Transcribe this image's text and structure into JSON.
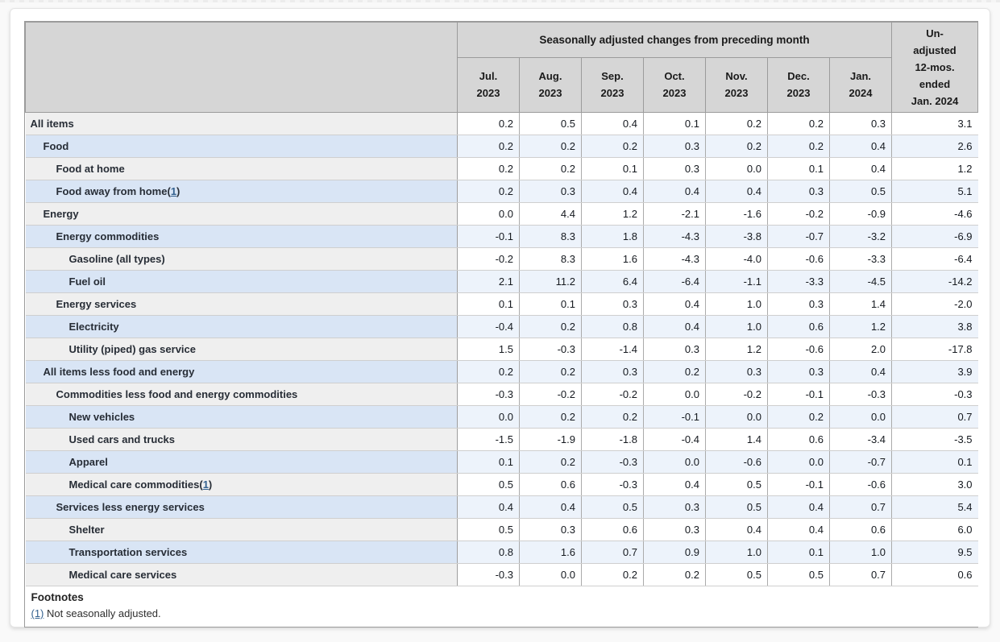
{
  "page": {
    "footnotes_heading": "Footnotes"
  },
  "colors": {
    "header_bg": "#d6d6d6",
    "row_gray_label_bg": "#efefef",
    "row_gray_data_bg": "#ffffff",
    "row_blue_label_bg": "#d9e5f5",
    "row_blue_data_bg": "#edf3fb",
    "table_border": "#9b9b9b",
    "footnote_link_blue": "#33618f"
  },
  "chart_data": {
    "type": "table",
    "title": "Seasonally adjusted changes from preceding month",
    "column_group_label": "Seasonally adjusted changes from preceding month",
    "month_columns": [
      [
        "Jul.",
        "2023"
      ],
      [
        "Aug.",
        "2023"
      ],
      [
        "Sep.",
        "2023"
      ],
      [
        "Oct.",
        "2023"
      ],
      [
        "Nov.",
        "2023"
      ],
      [
        "Dec.",
        "2023"
      ],
      [
        "Jan.",
        "2024"
      ]
    ],
    "unadjusted_column_label_lines": [
      "Un-",
      "adjusted",
      "12-mos.",
      "ended",
      "Jan. 2024"
    ],
    "rows": [
      {
        "label": "All items",
        "indent": 0,
        "footnote": false,
        "values": [
          "0.2",
          "0.5",
          "0.4",
          "0.1",
          "0.2",
          "0.2",
          "0.3",
          "3.1"
        ]
      },
      {
        "label": "Food",
        "indent": 1,
        "footnote": false,
        "values": [
          "0.2",
          "0.2",
          "0.2",
          "0.3",
          "0.2",
          "0.2",
          "0.4",
          "2.6"
        ]
      },
      {
        "label": "Food at home",
        "indent": 2,
        "footnote": false,
        "values": [
          "0.2",
          "0.2",
          "0.1",
          "0.3",
          "0.0",
          "0.1",
          "0.4",
          "1.2"
        ]
      },
      {
        "label": "Food away from home",
        "indent": 2,
        "footnote": true,
        "values": [
          "0.2",
          "0.3",
          "0.4",
          "0.4",
          "0.4",
          "0.3",
          "0.5",
          "5.1"
        ]
      },
      {
        "label": "Energy",
        "indent": 1,
        "footnote": false,
        "values": [
          "0.0",
          "4.4",
          "1.2",
          "-2.1",
          "-1.6",
          "-0.2",
          "-0.9",
          "-4.6"
        ]
      },
      {
        "label": "Energy commodities",
        "indent": 2,
        "footnote": false,
        "values": [
          "-0.1",
          "8.3",
          "1.8",
          "-4.3",
          "-3.8",
          "-0.7",
          "-3.2",
          "-6.9"
        ]
      },
      {
        "label": "Gasoline (all types)",
        "indent": 3,
        "footnote": false,
        "values": [
          "-0.2",
          "8.3",
          "1.6",
          "-4.3",
          "-4.0",
          "-0.6",
          "-3.3",
          "-6.4"
        ]
      },
      {
        "label": "Fuel oil",
        "indent": 3,
        "footnote": false,
        "values": [
          "2.1",
          "11.2",
          "6.4",
          "-6.4",
          "-1.1",
          "-3.3",
          "-4.5",
          "-14.2"
        ]
      },
      {
        "label": "Energy services",
        "indent": 2,
        "footnote": false,
        "values": [
          "0.1",
          "0.1",
          "0.3",
          "0.4",
          "1.0",
          "0.3",
          "1.4",
          "-2.0"
        ]
      },
      {
        "label": "Electricity",
        "indent": 3,
        "footnote": false,
        "values": [
          "-0.4",
          "0.2",
          "0.8",
          "0.4",
          "1.0",
          "0.6",
          "1.2",
          "3.8"
        ]
      },
      {
        "label": "Utility (piped) gas service",
        "indent": 3,
        "footnote": false,
        "values": [
          "1.5",
          "-0.3",
          "-1.4",
          "0.3",
          "1.2",
          "-0.6",
          "2.0",
          "-17.8"
        ]
      },
      {
        "label": "All items less food and energy",
        "indent": 1,
        "footnote": false,
        "values": [
          "0.2",
          "0.2",
          "0.3",
          "0.2",
          "0.3",
          "0.3",
          "0.4",
          "3.9"
        ]
      },
      {
        "label": "Commodities less food and energy commodities",
        "indent": 2,
        "footnote": false,
        "values": [
          "-0.3",
          "-0.2",
          "-0.2",
          "0.0",
          "-0.2",
          "-0.1",
          "-0.3",
          "-0.3"
        ]
      },
      {
        "label": "New vehicles",
        "indent": 3,
        "footnote": false,
        "values": [
          "0.0",
          "0.2",
          "0.2",
          "-0.1",
          "0.0",
          "0.2",
          "0.0",
          "0.7"
        ]
      },
      {
        "label": "Used cars and trucks",
        "indent": 3,
        "footnote": false,
        "values": [
          "-1.5",
          "-1.9",
          "-1.8",
          "-0.4",
          "1.4",
          "0.6",
          "-3.4",
          "-3.5"
        ]
      },
      {
        "label": "Apparel",
        "indent": 3,
        "footnote": false,
        "values": [
          "0.1",
          "0.2",
          "-0.3",
          "0.0",
          "-0.6",
          "0.0",
          "-0.7",
          "0.1"
        ]
      },
      {
        "label": "Medical care commodities",
        "indent": 3,
        "footnote": true,
        "values": [
          "0.5",
          "0.6",
          "-0.3",
          "0.4",
          "0.5",
          "-0.1",
          "-0.6",
          "3.0"
        ]
      },
      {
        "label": "Services less energy services",
        "indent": 2,
        "footnote": false,
        "values": [
          "0.4",
          "0.4",
          "0.5",
          "0.3",
          "0.5",
          "0.4",
          "0.7",
          "5.4"
        ]
      },
      {
        "label": "Shelter",
        "indent": 3,
        "footnote": false,
        "values": [
          "0.5",
          "0.3",
          "0.6",
          "0.3",
          "0.4",
          "0.4",
          "0.6",
          "6.0"
        ]
      },
      {
        "label": "Transportation services",
        "indent": 3,
        "footnote": false,
        "values": [
          "0.8",
          "1.6",
          "0.7",
          "0.9",
          "1.0",
          "0.1",
          "1.0",
          "9.5"
        ]
      },
      {
        "label": "Medical care services",
        "indent": 3,
        "footnote": false,
        "values": [
          "-0.3",
          "0.0",
          "0.2",
          "0.2",
          "0.5",
          "0.5",
          "0.7",
          "0.6"
        ]
      }
    ],
    "footnotes": [
      {
        "marker": "(1)",
        "text": "Not seasonally adjusted."
      }
    ]
  }
}
